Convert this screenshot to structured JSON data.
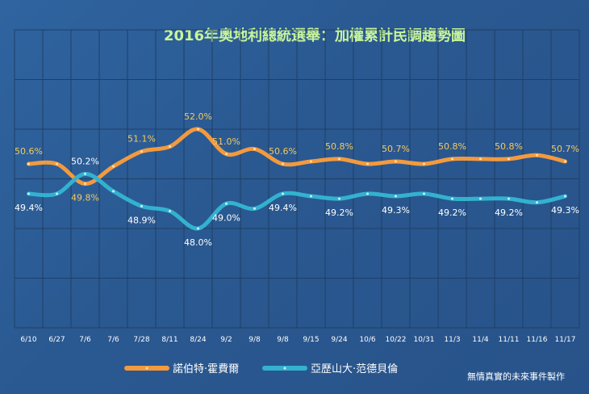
{
  "chart_data": {
    "type": "line",
    "title": "2016年奧地利總統選舉：加權累計民調趨勢圖",
    "categories": [
      "6/10",
      "6/27",
      "7/6",
      "7/6",
      "7/28",
      "8/11",
      "8/24",
      "9/2",
      "9/8",
      "9/8",
      "9/15",
      "9/24",
      "10/6",
      "10/22",
      "10/31",
      "11/3",
      "11/4",
      "11/11",
      "11/16",
      "11/17"
    ],
    "ylim": [
      44.0,
      56.0
    ],
    "grid": true,
    "legend_position": "bottom-left",
    "series": [
      {
        "name": "諾伯特·霍費爾",
        "color": "#f39a3e",
        "values": [
          50.6,
          50.6,
          49.8,
          50.5,
          51.1,
          51.3,
          52.0,
          51.0,
          51.2,
          50.6,
          50.7,
          50.8,
          50.6,
          50.7,
          50.6,
          50.8,
          50.8,
          50.8,
          50.95,
          50.7
        ],
        "labels": {
          "0": "50.6%",
          "2": "49.8%",
          "4": "51.1%",
          "6": "52.0%",
          "7": "51.0%",
          "9": "50.6%",
          "11": "50.8%",
          "13": "50.7%",
          "15": "50.8%",
          "17": "50.8%",
          "19": "50.7%"
        }
      },
      {
        "name": "亞歷山大·范德貝倫",
        "color": "#33b2d0",
        "values": [
          49.4,
          49.4,
          50.2,
          49.5,
          48.9,
          48.7,
          48.0,
          49.0,
          48.8,
          49.4,
          49.3,
          49.2,
          49.4,
          49.3,
          49.4,
          49.2,
          49.2,
          49.2,
          49.05,
          49.3
        ],
        "labels": {
          "0": "49.4%",
          "2": "50.2%",
          "4": "48.9%",
          "6": "48.0%",
          "7": "49.0%",
          "9": "49.4%",
          "11": "49.2%",
          "13": "49.3%",
          "15": "49.2%",
          "17": "49.2%",
          "19": "49.3%"
        }
      }
    ]
  },
  "credit": "無情真實的未來事件製作"
}
